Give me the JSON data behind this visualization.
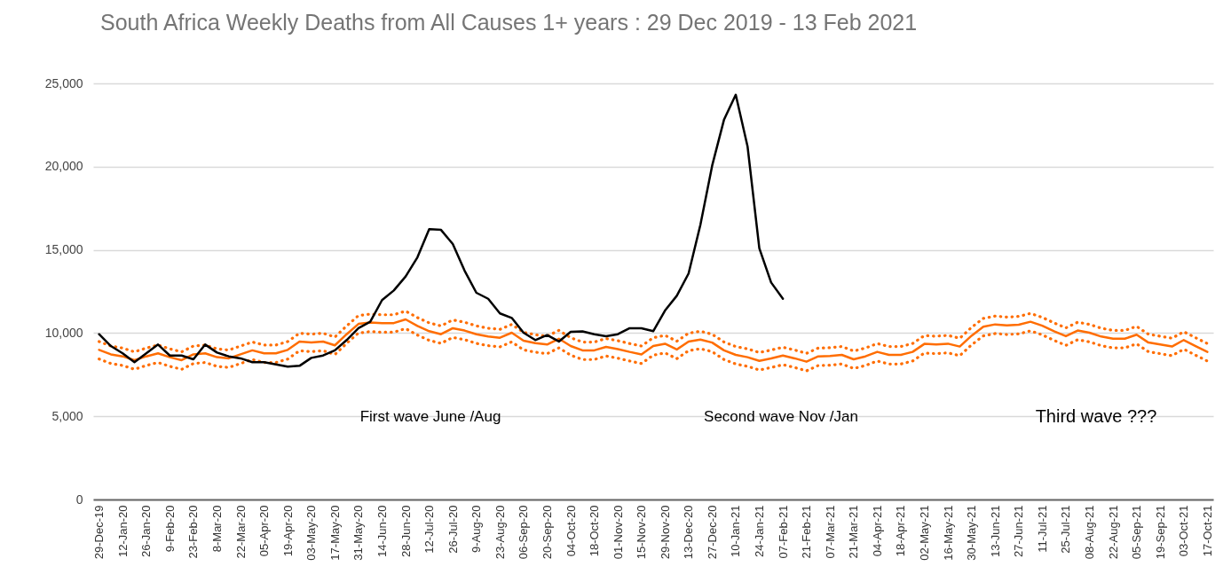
{
  "chart_data": {
    "type": "line",
    "title": "South Africa Weekly Deaths from All Causes 1+ years : 29 Dec 2019 -  13 Feb 2021",
    "categories": [
      "29-Dec-19",
      null,
      "12-Jan-20",
      null,
      "26-Jan-20",
      null,
      "9-Feb-20",
      null,
      "23-Feb-20",
      null,
      "8-Mar-20",
      null,
      "22-Mar-20",
      null,
      "05-Apr-20",
      null,
      "19-Apr-20",
      null,
      "03-May-20",
      null,
      "17-May-20",
      null,
      "31-May-20",
      null,
      "14-Jun-20",
      null,
      "28-Jun-20",
      null,
      "12-Jul-20",
      null,
      "26-Jul-20",
      null,
      "9-Aug-20",
      null,
      "23-Aug-20",
      null,
      "06-Sep-20",
      null,
      "20-Sep-20",
      null,
      "04-Oct-20",
      null,
      "18-Oct-20",
      null,
      "01-Nov-20",
      null,
      "15-Nov-20",
      null,
      "29-Nov-20",
      null,
      "13-Dec-20",
      null,
      "27-Dec-20",
      null,
      "10-Jan-21",
      null,
      "24-Jan-21",
      null,
      "07-Feb-21",
      null,
      "21-Feb-21",
      null,
      "07-Mar-21",
      null,
      "21-Mar-21",
      null,
      "04-Apr-21",
      null,
      "18-Apr-21",
      null,
      "02-May-21",
      null,
      "16-May-21",
      null,
      "30-May-21",
      null,
      "13-Jun-21",
      null,
      "27-Jun-21",
      null,
      "11-Jul-21",
      null,
      "25-Jul-21",
      null,
      "08-Aug-21",
      null,
      "22-Aug-21",
      null,
      "05-Sep-21",
      null,
      "19-Sep-21",
      null,
      "03-Oct-21",
      null,
      "17-Oct-21"
    ],
    "series": [
      {
        "color": "#ff6d01",
        "line_style": "dotted",
        "values": [
          9490,
          9220,
          9100,
          8870,
          9100,
          9280,
          9050,
          8870,
          9220,
          9280,
          9050,
          8980,
          9220,
          9460,
          9280,
          9280,
          9490,
          9990,
          9930,
          9990,
          9760,
          10430,
          11050,
          11140,
          11100,
          11100,
          11320,
          10930,
          10610,
          10430,
          10790,
          10650,
          10430,
          10290,
          10220,
          10520,
          10040,
          9900,
          9810,
          10160,
          9720,
          9460,
          9460,
          9670,
          9540,
          9370,
          9220,
          9720,
          9860,
          9510,
          9990,
          10110,
          9930,
          9460,
          9190,
          9050,
          8830,
          8980,
          9150,
          8980,
          8780,
          9100,
          9120,
          9190,
          8920,
          9100,
          9370,
          9190,
          9190,
          9370,
          9850,
          9810,
          9860,
          9690,
          10340,
          10880,
          11020,
          10960,
          11000,
          11180,
          10940,
          10610,
          10310,
          10650,
          10520,
          10290,
          10160,
          10160,
          10400,
          9930,
          9810,
          9690,
          10080,
          9720,
          9370
        ]
      },
      {
        "color": "#ff6d01",
        "line_style": "dotted",
        "values": [
          8440,
          8170,
          8050,
          7820,
          8050,
          8230,
          8000,
          7820,
          8170,
          8230,
          8000,
          7930,
          8170,
          8410,
          8230,
          8230,
          8440,
          8940,
          8880,
          8940,
          8710,
          9380,
          10000,
          10090,
          10050,
          10050,
          10270,
          9880,
          9560,
          9380,
          9740,
          9600,
          9380,
          9240,
          9170,
          9470,
          8990,
          8850,
          8760,
          9110,
          8670,
          8410,
          8410,
          8620,
          8490,
          8320,
          8170,
          8670,
          8810,
          8460,
          8940,
          9060,
          8880,
          8410,
          8140,
          8000,
          7780,
          7930,
          8100,
          7930,
          7730,
          8050,
          8070,
          8140,
          7870,
          8050,
          8320,
          8140,
          8140,
          8320,
          8800,
          8760,
          8810,
          8640,
          9290,
          9830,
          9970,
          9910,
          9950,
          10130,
          9890,
          9560,
          9260,
          9600,
          9470,
          9240,
          9110,
          9110,
          9350,
          8880,
          8760,
          8640,
          9030,
          8670,
          8320
        ]
      },
      {
        "color": "#ff6d01",
        "line_style": "solid",
        "values": [
          8990,
          8720,
          8600,
          8370,
          8600,
          8780,
          8550,
          8370,
          8720,
          8780,
          8550,
          8480,
          8720,
          8960,
          8780,
          8780,
          8990,
          9490,
          9430,
          9490,
          9260,
          9930,
          10550,
          10640,
          10600,
          10600,
          10820,
          10430,
          10110,
          9930,
          10290,
          10150,
          9930,
          9790,
          9720,
          10020,
          9540,
          9400,
          9310,
          9660,
          9220,
          8960,
          8960,
          9170,
          9040,
          8870,
          8720,
          9220,
          9360,
          9010,
          9490,
          9610,
          9430,
          8960,
          8690,
          8550,
          8330,
          8480,
          8650,
          8480,
          8280,
          8600,
          8620,
          8690,
          8420,
          8600,
          8870,
          8690,
          8690,
          8870,
          9350,
          9310,
          9360,
          9190,
          9840,
          10380,
          10520,
          10460,
          10500,
          10680,
          10440,
          10110,
          9810,
          10150,
          10020,
          9790,
          9660,
          9660,
          9900,
          9430,
          9310,
          9190,
          9580,
          9220,
          8870
        ]
      },
      {
        "color": "#000000",
        "line_style": "solid",
        "values": [
          9930,
          9220,
          8780,
          8250,
          8780,
          9310,
          8650,
          8650,
          8420,
          9310,
          8830,
          8600,
          8480,
          8250,
          8250,
          8120,
          7980,
          8030,
          8510,
          8650,
          8960,
          9580,
          10290,
          10680,
          11980,
          12560,
          13400,
          14550,
          16240,
          16200,
          15350,
          13750,
          12420,
          12060,
          11180,
          10910,
          10020,
          9580,
          9880,
          9490,
          10070,
          10100,
          9930,
          9810,
          9930,
          10290,
          10290,
          10110,
          11350,
          12240,
          13580,
          16500,
          20060,
          22810,
          24320,
          21220,
          15090,
          13040,
          12060,
          null,
          null,
          null,
          null,
          null,
          null,
          null,
          null,
          null,
          null,
          null,
          null,
          null,
          null,
          null,
          null,
          null,
          null,
          null,
          null,
          null,
          null,
          null,
          null,
          null,
          null,
          null,
          null,
          null,
          null,
          null,
          null,
          null,
          null,
          null,
          null
        ]
      }
    ],
    "ylim": [
      0,
      25000
    ],
    "yticks": [
      0,
      {
        "value": 5000,
        "label": "5,000"
      },
      {
        "value": 10000,
        "label": "10,000"
      },
      {
        "value": 15000,
        "label": "15,000"
      },
      {
        "value": 20000,
        "label": "20,000"
      },
      {
        "value": 25000,
        "label": "25,000"
      }
    ],
    "grid": "y",
    "annotations": [
      "First wave June /Aug",
      "Second wave Nov /Jan",
      "Third wave ???"
    ]
  }
}
